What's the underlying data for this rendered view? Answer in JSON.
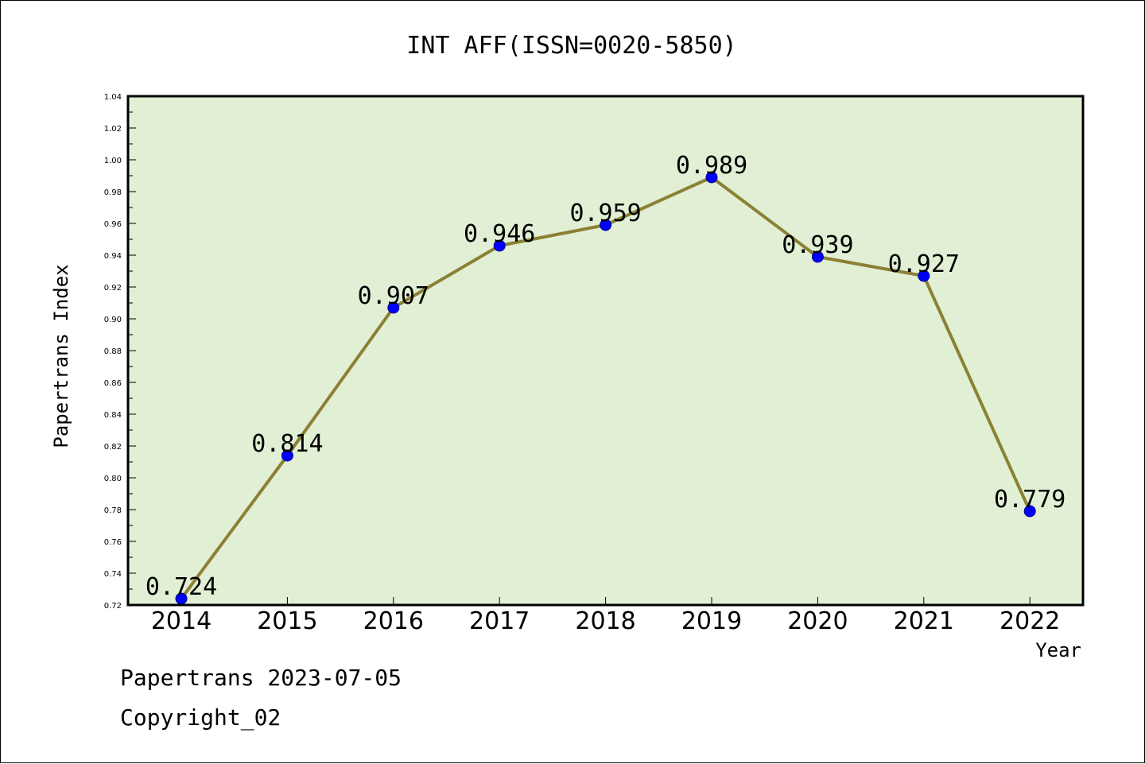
{
  "chart_data": {
    "type": "line",
    "title": "INT AFF(ISSN=0020-5850)",
    "xlabel": "Year",
    "ylabel": "Papertrans Index",
    "categories": [
      "2014",
      "2015",
      "2016",
      "2017",
      "2018",
      "2019",
      "2020",
      "2021",
      "2022"
    ],
    "series": [
      {
        "values": [
          0.724,
          0.814,
          0.907,
          0.946,
          0.959,
          0.989,
          0.939,
          0.927,
          0.779
        ],
        "data_labels": [
          "0.724",
          "0.814",
          "0.907",
          "0.946",
          "0.959",
          "0.989",
          "0.939",
          "0.927",
          "0.779"
        ]
      }
    ],
    "ylim": [
      0.72,
      1.04
    ],
    "yticks": [
      "0.72",
      "0.74",
      "0.76",
      "0.78",
      "0.80",
      "0.82",
      "0.84",
      "0.86",
      "0.88",
      "0.90",
      "0.92",
      "0.94",
      "0.96",
      "0.98",
      "1.00",
      "1.02",
      "1.04"
    ],
    "grid": false,
    "legend": "none",
    "colors": {
      "plot_background": "#e1efd4",
      "line": "#8b8034",
      "marker": "#0000ff",
      "marker_edge": "#00008b"
    }
  },
  "footer": {
    "line1": "Papertrans 2023-07-05",
    "line2": "Copyright_02"
  }
}
